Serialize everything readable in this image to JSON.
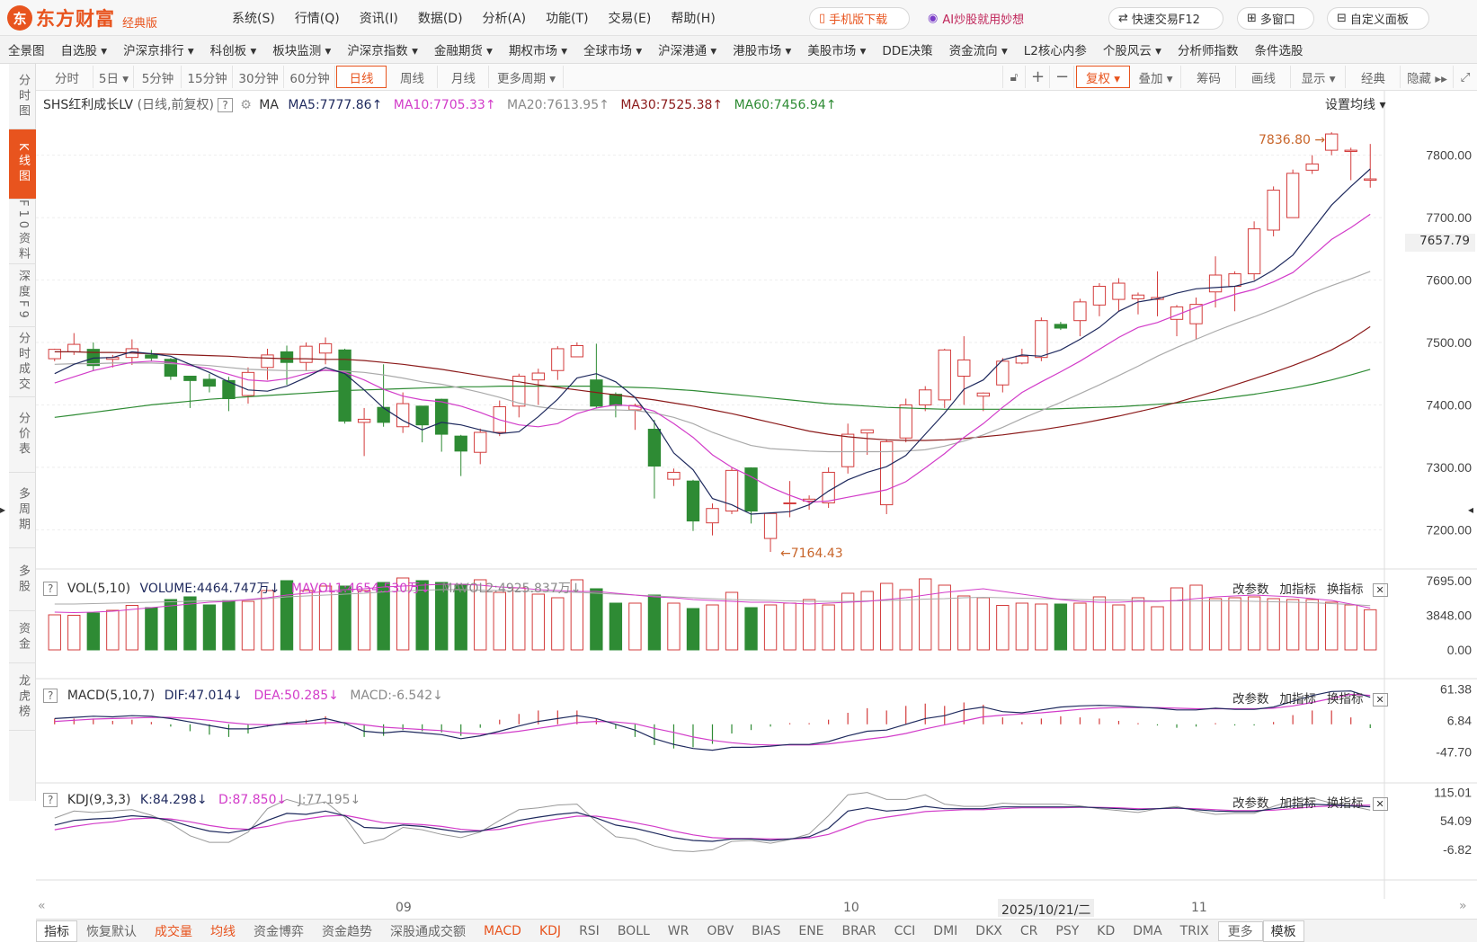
{
  "app": {
    "brand": "东方财富",
    "edition": "经典版",
    "logo_mark": "东"
  },
  "menu": [
    "系统(S)",
    "行情(Q)",
    "资讯(I)",
    "数据(D)",
    "分析(A)",
    "功能(T)",
    "交易(E)",
    "帮助(H)"
  ],
  "top_buttons": {
    "mobile": "手机版下载",
    "ai": "AI炒股就用妙想",
    "fast_trade": "快速交易F12",
    "multi_window": "多窗口",
    "custom_panel": "自定义面板"
  },
  "nav": [
    "全景图",
    "自选股 ▾",
    "沪深京排行 ▾",
    "科创板 ▾",
    "板块监测 ▾",
    "沪深京指数 ▾",
    "金融期货 ▾",
    "期权市场 ▾",
    "全球市场 ▾",
    "沪深港通 ▾",
    "港股市场 ▾",
    "美股市场 ▾",
    "DDE决策",
    "资金流向 ▾",
    "L2核心内参",
    "个股风云 ▾",
    "分析师指数",
    "条件选股"
  ],
  "sidebar": [
    "分时图",
    "K线图",
    "F10资料",
    "深度F9",
    "分时成交",
    "分价表",
    "多周期",
    "多股",
    "资金",
    "龙虎榜"
  ],
  "periods": [
    "分时",
    "5日 ▾",
    "5分钟",
    "15分钟",
    "30分钟",
    "60分钟",
    "日线",
    "周线",
    "月线",
    "更多周期 ▾"
  ],
  "tools": {
    "fuquan": "复权 ▾",
    "overlay": "叠加 ▾",
    "chips": "筹码",
    "draw": "画线",
    "display": "显示 ▾",
    "classic": "经典",
    "hide": "隐藏 ▸▸"
  },
  "main_legend": {
    "name": "SHS红利成长LV",
    "mode": "(日线,前复权)",
    "help": "?",
    "ma": "MA",
    "ma5": "MA5:7777.86",
    "ma10": "MA10:7705.33",
    "ma20": "MA20:7613.95",
    "ma30": "MA30:7525.38",
    "ma60": "MA60:7456.94",
    "set_ma": "设置均线 ▾",
    "arrow_up": "↑"
  },
  "main_axis": {
    "ticks": [
      "7800.00",
      "7700.00",
      "7600.00",
      "7500.00",
      "7400.00",
      "7300.00",
      "7200.00"
    ],
    "current": "7657.79",
    "high_label": "7836.80",
    "low_label": "7164.43",
    "high_arrow": "→",
    "low_arrow": "←"
  },
  "vol_legend": {
    "name": "VOL(5,10)",
    "volume": "VOLUME:4464.747万",
    "mavol1": "MAVOL1:4654.530万",
    "mavol2": "MAVOL2:4925.837万",
    "arrow_down": "↓"
  },
  "vol_axis": [
    "7695.00",
    "3848.00",
    "0.00"
  ],
  "macd_legend": {
    "name": "MACD(5,10,7)",
    "dif": "DIF:47.014",
    "dea": "DEA:50.285",
    "macd": "MACD:-6.542"
  },
  "macd_axis": [
    "61.38",
    "6.84",
    "-47.70"
  ],
  "kdj_legend": {
    "name": "KDJ(9,3,3)",
    "k": "K:84.298",
    "d": "D:87.850",
    "j": "J:77.195"
  },
  "kdj_axis": [
    "115.01",
    "54.09",
    "-6.82"
  ],
  "panel_actions": {
    "params": "改参数",
    "add": "加指标",
    "switch": "换指标",
    "close": "✕"
  },
  "xaxis": {
    "sep": "09",
    "oct": "10",
    "nov": "11",
    "cursor_date": "2025/10/21/二",
    "left_nav": "«",
    "right_nav": "»"
  },
  "tabs": [
    "指标",
    "恢复默认",
    "成交量",
    "均线",
    "资金博弈",
    "资金趋势",
    "深股通成交额",
    "MACD",
    "KDJ",
    "RSI",
    "BOLL",
    "WR",
    "OBV",
    "BIAS",
    "ENE",
    "BRAR",
    "CCI",
    "DMI",
    "DKX",
    "CR",
    "PSY",
    "KD",
    "DMA",
    "TRIX",
    "更多",
    "模板"
  ],
  "colors": {
    "accent": "#e8541e",
    "up": "#d33c3c",
    "down": "#2e8b34",
    "ma5": "#1f2a5e",
    "ma10": "#d23cc9",
    "ma20": "#9a9a9a",
    "ma30": "#8b1a1a",
    "ma60": "#2e8b34"
  },
  "chart_data": {
    "type": "candlestick",
    "title": "SHS红利成长LV",
    "ohlc": [
      [
        7474,
        7489,
        7470,
        7490
      ],
      [
        7485,
        7497,
        7480,
        7515
      ],
      [
        7489,
        7463,
        7455,
        7500
      ],
      [
        7473,
        7476,
        7460,
        7480
      ],
      [
        7476,
        7490,
        7464,
        7505
      ],
      [
        7480,
        7475,
        7470,
        7488
      ],
      [
        7473,
        7446,
        7440,
        7475
      ],
      [
        7446,
        7439,
        7395,
        7446
      ],
      [
        7441,
        7430,
        7420,
        7450
      ],
      [
        7439,
        7410,
        7390,
        7445
      ],
      [
        7415,
        7452,
        7402,
        7460
      ],
      [
        7460,
        7480,
        7440,
        7490
      ],
      [
        7485,
        7468,
        7432,
        7495
      ],
      [
        7468,
        7494,
        7454,
        7500
      ],
      [
        7483,
        7498,
        7465,
        7508
      ],
      [
        7488,
        7374,
        7370,
        7490
      ],
      [
        7372,
        7377,
        7318,
        7395
      ],
      [
        7396,
        7372,
        7365,
        7465
      ],
      [
        7365,
        7402,
        7355,
        7420
      ],
      [
        7398,
        7368,
        7340,
        7398
      ],
      [
        7409,
        7353,
        7325,
        7410
      ],
      [
        7350,
        7326,
        7286,
        7352
      ],
      [
        7324,
        7356,
        7305,
        7362
      ],
      [
        7356,
        7397,
        7350,
        7407
      ],
      [
        7398,
        7446,
        7380,
        7450
      ],
      [
        7440,
        7451,
        7400,
        7458
      ],
      [
        7455,
        7490,
        7440,
        7494
      ],
      [
        7477,
        7495,
        7480,
        7500
      ],
      [
        7440,
        7398,
        7395,
        7498
      ],
      [
        7417,
        7399,
        7380,
        7420
      ],
      [
        7392,
        7399,
        7360,
        7402
      ],
      [
        7361,
        7302,
        7250,
        7376
      ],
      [
        7281,
        7292,
        7270,
        7298
      ],
      [
        7278,
        7214,
        7198,
        7280
      ],
      [
        7211,
        7234,
        7191,
        7242
      ],
      [
        7230,
        7295,
        7225,
        7300
      ],
      [
        7299,
        7230,
        7210,
        7300
      ],
      [
        7186,
        7226,
        7164.43,
        7228
      ],
      [
        7243,
        7243,
        7220,
        7278
      ],
      [
        7246,
        7249,
        7232,
        7255
      ],
      [
        7243,
        7292,
        7235,
        7300
      ],
      [
        7301,
        7353,
        7290,
        7370
      ],
      [
        7355,
        7360,
        7320,
        7360
      ],
      [
        7240,
        7341,
        7225,
        7345
      ],
      [
        7347,
        7400,
        7340,
        7410
      ],
      [
        7400,
        7424,
        7390,
        7430
      ],
      [
        7408,
        7488,
        7395,
        7490
      ],
      [
        7446,
        7472,
        7400,
        7510
      ],
      [
        7414,
        7419,
        7390,
        7420
      ],
      [
        7432,
        7470,
        7420,
        7475
      ],
      [
        7467,
        7478,
        7465,
        7490
      ],
      [
        7476,
        7535,
        7470,
        7540
      ],
      [
        7529,
        7523,
        7520,
        7533
      ],
      [
        7535,
        7565,
        7510,
        7570
      ],
      [
        7560,
        7590,
        7542,
        7595
      ],
      [
        7569,
        7595,
        7550,
        7603
      ],
      [
        7570,
        7576,
        7545,
        7580
      ],
      [
        7569,
        7572,
        7542,
        7614
      ],
      [
        7537,
        7557,
        7510,
        7560
      ],
      [
        7530,
        7561,
        7505,
        7572
      ],
      [
        7581,
        7608,
        7556,
        7638
      ],
      [
        7590,
        7610,
        7550,
        7614
      ],
      [
        7610,
        7682,
        7600,
        7694
      ],
      [
        7680,
        7744,
        7670,
        7750
      ],
      [
        7700,
        7771,
        7700,
        7777
      ],
      [
        7776,
        7786,
        7770,
        7800
      ],
      [
        7808,
        7834,
        7800,
        7836.8
      ],
      [
        7806,
        7808,
        7760,
        7812
      ],
      [
        7760,
        7762,
        7748,
        7818
      ]
    ],
    "ma5": [
      7450,
      7465,
      7475,
      7476,
      7485,
      7482,
      7478,
      7465,
      7452,
      7437,
      7424,
      7422,
      7430,
      7444,
      7460,
      7450,
      7424,
      7395,
      7375,
      7360,
      7372,
      7368,
      7360,
      7354,
      7357,
      7381,
      7409,
      7443,
      7450,
      7437,
      7412,
      7372,
      7323,
      7296,
      7250,
      7240,
      7225,
      7227,
      7229,
      7240,
      7262,
      7280,
      7292,
      7301,
      7319,
      7353,
      7387,
      7425,
      7440,
      7472,
      7480,
      7478,
      7488,
      7505,
      7524,
      7550,
      7565,
      7570,
      7579,
      7586,
      7588,
      7590,
      7598,
      7616,
      7640,
      7680,
      7720,
      7750,
      7777.86
    ],
    "ma10": [
      7435,
      7445,
      7455,
      7462,
      7468,
      7470,
      7468,
      7463,
      7458,
      7449,
      7440,
      7438,
      7442,
      7450,
      7456,
      7452,
      7440,
      7425,
      7414,
      7408,
      7405,
      7398,
      7388,
      7376,
      7368,
      7365,
      7370,
      7386,
      7395,
      7400,
      7398,
      7390,
      7370,
      7348,
      7320,
      7300,
      7285,
      7268,
      7255,
      7244,
      7246,
      7252,
      7258,
      7264,
      7277,
      7299,
      7322,
      7348,
      7370,
      7396,
      7420,
      7437,
      7453,
      7470,
      7489,
      7508,
      7524,
      7532,
      7544,
      7556,
      7567,
      7577,
      7585,
      7597,
      7612,
      7638,
      7665,
      7684,
      7705.33
    ],
    "ma20": [
      7465,
      7466,
      7466,
      7467,
      7467,
      7467,
      7466,
      7465,
      7463,
      7460,
      7457,
      7456,
      7455,
      7455,
      7455,
      7454,
      7452,
      7448,
      7443,
      7437,
      7433,
      7427,
      7420,
      7412,
      7403,
      7397,
      7393,
      7392,
      7392,
      7392,
      7391,
      7387,
      7380,
      7370,
      7356,
      7345,
      7335,
      7330,
      7328,
      7326,
      7325,
      7325,
      7325,
      7325,
      7326,
      7328,
      7334,
      7342,
      7352,
      7364,
      7378,
      7391,
      7404,
      7418,
      7432,
      7447,
      7462,
      7478,
      7492,
      7505,
      7518,
      7530,
      7541,
      7553,
      7566,
      7579,
      7591,
      7602,
      7613.95
    ],
    "ma30": [
      7485,
      7485,
      7484,
      7484,
      7483,
      7482,
      7481,
      7480,
      7479,
      7478,
      7476,
      7475,
      7474,
      7474,
      7473,
      7473,
      7471,
      7468,
      7465,
      7461,
      7457,
      7452,
      7447,
      7442,
      7437,
      7432,
      7428,
      7424,
      7420,
      7416,
      7412,
      7408,
      7403,
      7398,
      7392,
      7386,
      7379,
      7372,
      7365,
      7358,
      7353,
      7349,
      7346,
      7344,
      7343,
      7343,
      7344,
      7346,
      7349,
      7352,
      7356,
      7360,
      7365,
      7370,
      7376,
      7382,
      7389,
      7396,
      7404,
      7413,
      7422,
      7432,
      7442,
      7452,
      7463,
      7475,
      7488,
      7505,
      7525.38
    ],
    "ma60": [
      7380,
      7384,
      7388,
      7392,
      7396,
      7400,
      7403,
      7406,
      7409,
      7411,
      7413,
      7415,
      7417,
      7419,
      7421,
      7423,
      7424,
      7425,
      7426,
      7427,
      7428,
      7429,
      7429,
      7430,
      7430,
      7430,
      7430,
      7430,
      7430,
      7429,
      7428,
      7427,
      7425,
      7423,
      7420,
      7417,
      7414,
      7411,
      7408,
      7405,
      7402,
      7400,
      7398,
      7396,
      7395,
      7394,
      7393,
      7393,
      7393,
      7393,
      7393,
      7393,
      7394,
      7395,
      7396,
      7397,
      7399,
      7401,
      7403,
      7406,
      7409,
      7413,
      7417,
      7422,
      7427,
      7433,
      7440,
      7448,
      7456.94
    ],
    "volume": [
      3900,
      3850,
      4100,
      4400,
      4950,
      4700,
      5600,
      5900,
      5000,
      5500,
      5400,
      6600,
      7700,
      6600,
      7100,
      7100,
      6600,
      7500,
      8000,
      7700,
      7500,
      7300,
      7800,
      6400,
      6900,
      6200,
      5800,
      7800,
      6800,
      5200,
      5200,
      6100,
      5200,
      4600,
      5000,
      6400,
      4700,
      5000,
      5200,
      5600,
      5000,
      6300,
      6500,
      7400,
      6700,
      7900,
      7200,
      6000,
      5800,
      4950,
      5200,
      5100,
      5100,
      5200,
      5900,
      5000,
      5800,
      4800,
      6900,
      7200,
      5700,
      5800,
      5900,
      5700,
      5600,
      5600,
      5300,
      5000,
      4464.7
    ],
    "mavol1": [
      4200,
      4150,
      4200,
      4300,
      4500,
      4700,
      4900,
      5100,
      5300,
      5400,
      5600,
      5800,
      6100,
      6300,
      6500,
      6700,
      6800,
      7000,
      7100,
      7200,
      7300,
      7300,
      7200,
      7000,
      6900,
      6700,
      6600,
      6500,
      6500,
      6300,
      6100,
      5900,
      5800,
      5600,
      5500,
      5400,
      5300,
      5300,
      5200,
      5100,
      5200,
      5300,
      5400,
      5600,
      5800,
      6100,
      6400,
      6600,
      6800,
      6500,
      6200,
      5900,
      5600,
      5400,
      5300,
      5300,
      5400,
      5400,
      5500,
      5700,
      5900,
      6000,
      6100,
      6000,
      5900,
      5700,
      5500,
      5100,
      4654.5
    ],
    "mavol2": [
      5100,
      5100,
      5150,
      5200,
      5250,
      5300,
      5350,
      5400,
      5450,
      5500,
      5550,
      5700,
      5900,
      6000,
      6100,
      6200,
      6300,
      6450,
      6550,
      6650,
      6700,
      6700,
      6650,
      6600,
      6550,
      6500,
      6450,
      6400,
      6300,
      6200,
      6100,
      6000,
      5900,
      5800,
      5700,
      5600,
      5550,
      5500,
      5450,
      5400,
      5400,
      5400,
      5450,
      5500,
      5550,
      5650,
      5700,
      5800,
      5850,
      5800,
      5750,
      5700,
      5650,
      5600,
      5550,
      5550,
      5500,
      5450,
      5450,
      5450,
      5450,
      5450,
      5400,
      5350,
      5300,
      5250,
      5150,
      5050,
      4925.8
    ],
    "dif": [
      10,
      12,
      14,
      13,
      15,
      14,
      10,
      4,
      -2,
      -8,
      -8,
      -3,
      2,
      5,
      10,
      2,
      -12,
      -15,
      -12,
      -15,
      -18,
      -25,
      -20,
      -12,
      -3,
      5,
      10,
      15,
      10,
      0,
      -10,
      -25,
      -35,
      -42,
      -45,
      -40,
      -40,
      -38,
      -35,
      -35,
      -30,
      -20,
      -12,
      -10,
      0,
      10,
      15,
      25,
      30,
      22,
      20,
      25,
      30,
      32,
      33,
      32,
      30,
      28,
      25,
      25,
      28,
      26,
      26,
      30,
      40,
      50,
      57,
      58,
      47.014
    ],
    "dea": [
      5,
      7,
      9,
      10,
      11,
      12,
      12,
      10,
      7,
      3,
      0,
      -1,
      0,
      1,
      3,
      3,
      -1,
      -5,
      -7,
      -9,
      -11,
      -15,
      -17,
      -16,
      -12,
      -7,
      -2,
      3,
      5,
      4,
      1,
      -7,
      -14,
      -22,
      -28,
      -32,
      -35,
      -36,
      -36,
      -36,
      -34,
      -30,
      -26,
      -22,
      -16,
      -8,
      -1,
      6,
      13,
      16,
      18,
      20,
      23,
      26,
      28,
      29,
      29,
      29,
      28,
      27,
      27,
      27,
      27,
      28,
      32,
      38,
      45,
      52,
      50.285
    ],
    "k": [
      45,
      55,
      58,
      60,
      65,
      62,
      55,
      42,
      32,
      28,
      35,
      55,
      70,
      68,
      75,
      65,
      40,
      38,
      45,
      42,
      36,
      30,
      32,
      42,
      55,
      62,
      68,
      72,
      60,
      45,
      38,
      28,
      18,
      12,
      10,
      15,
      15,
      12,
      15,
      20,
      38,
      75,
      82,
      75,
      78,
      85,
      80,
      80,
      80,
      84,
      84,
      84,
      84,
      84,
      82,
      80,
      78,
      80,
      82,
      78,
      75,
      74,
      74,
      80,
      86,
      90,
      88,
      86,
      84.298
    ],
    "d": [
      35,
      42,
      48,
      52,
      58,
      60,
      58,
      52,
      44,
      38,
      36,
      42,
      52,
      58,
      64,
      66,
      58,
      50,
      48,
      46,
      42,
      36,
      33,
      36,
      44,
      52,
      58,
      64,
      64,
      58,
      50,
      42,
      32,
      24,
      18,
      16,
      16,
      15,
      15,
      17,
      25,
      40,
      55,
      62,
      68,
      74,
      76,
      78,
      78,
      80,
      82,
      82,
      82,
      83,
      83,
      82,
      80,
      80,
      81,
      80,
      78,
      76,
      76,
      77,
      80,
      84,
      86,
      87,
      87.85
    ],
    "j": [
      60,
      75,
      72,
      75,
      78,
      66,
      48,
      22,
      8,
      8,
      30,
      80,
      100,
      88,
      95,
      62,
      5,
      15,
      40,
      35,
      25,
      18,
      30,
      55,
      78,
      82,
      88,
      90,
      52,
      20,
      15,
      0,
      -10,
      -12,
      -8,
      10,
      12,
      6,
      14,
      26,
      65,
      110,
      115,
      100,
      100,
      110,
      90,
      85,
      85,
      92,
      90,
      90,
      90,
      86,
      80,
      76,
      72,
      80,
      85,
      75,
      68,
      70,
      70,
      85,
      98,
      103,
      92,
      86,
      77.195
    ]
  }
}
